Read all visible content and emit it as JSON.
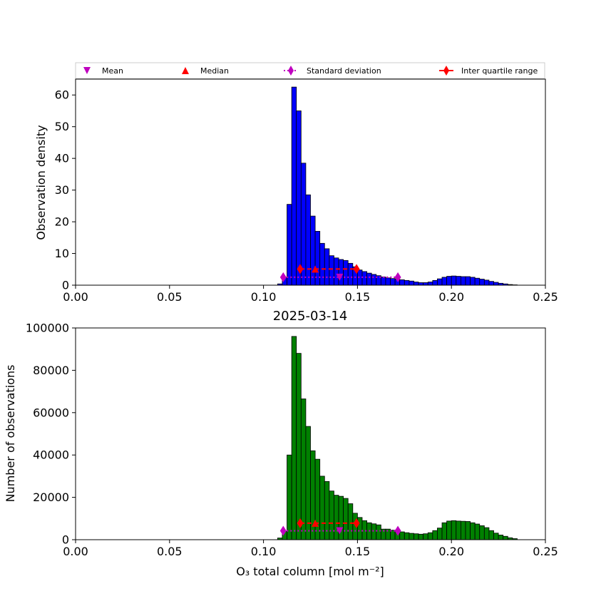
{
  "chart_data": [
    {
      "type": "bar",
      "panel": "density",
      "title": "",
      "xlabel": "",
      "ylabel": "Observation density",
      "xlim": [
        0.0,
        0.25
      ],
      "ylim": [
        0,
        65
      ],
      "x_ticks": [
        "0.00",
        "0.05",
        "0.10",
        "0.15",
        "0.20",
        "0.25"
      ],
      "y_ticks": [
        "0",
        "10",
        "20",
        "30",
        "40",
        "50",
        "60"
      ],
      "y_tick_values": [
        0,
        10,
        20,
        30,
        40,
        50,
        60
      ],
      "bar_color": "#0000ff",
      "bin_width": 0.0025,
      "bin_starts": [
        0.1075,
        0.11,
        0.1125,
        0.115,
        0.1175,
        0.12,
        0.1225,
        0.125,
        0.1275,
        0.13,
        0.1325,
        0.135,
        0.1375,
        0.14,
        0.1425,
        0.145,
        0.1475,
        0.15,
        0.1525,
        0.155,
        0.1575,
        0.16,
        0.1625,
        0.165,
        0.1675,
        0.17,
        0.1725,
        0.175,
        0.1775,
        0.18,
        0.1825,
        0.185,
        0.1875,
        0.19,
        0.1925,
        0.195,
        0.1975,
        0.2,
        0.2025,
        0.205,
        0.2075,
        0.21,
        0.2125,
        0.215,
        0.2175,
        0.22,
        0.2225,
        0.225,
        0.2275,
        0.23,
        0.2325
      ],
      "values": [
        0.4,
        2.5,
        25.5,
        62.5,
        55.0,
        38.5,
        28.5,
        21.8,
        17.0,
        13.2,
        11.5,
        9.3,
        8.6,
        8.1,
        7.8,
        6.9,
        5.8,
        4.8,
        4.3,
        3.8,
        3.4,
        3.0,
        2.6,
        2.3,
        2.1,
        1.9,
        1.7,
        1.5,
        1.3,
        1.0,
        0.8,
        0.8,
        1.0,
        1.5,
        2.0,
        2.5,
        2.8,
        2.9,
        2.8,
        2.7,
        2.7,
        2.5,
        2.2,
        1.9,
        1.6,
        1.2,
        0.9,
        0.6,
        0.4,
        0.2,
        0.1
      ],
      "statistics": {
        "mean": 0.1405,
        "median": 0.1275,
        "standard_deviation_range": [
          0.1105,
          0.1715
        ],
        "inter_quartile_range": [
          0.1195,
          0.1495
        ]
      },
      "marker_levels": {
        "mean": 2.5,
        "median": 5.1,
        "standard_deviation": 2.5,
        "inter_quartile_range": 5.1
      }
    },
    {
      "type": "bar",
      "panel": "counts",
      "title": "2025-03-14",
      "xlabel": "O₃ total column [mol m⁻²]",
      "ylabel": "Number of observations",
      "xlim": [
        0.0,
        0.25
      ],
      "ylim": [
        0,
        100000
      ],
      "x_ticks": [
        "0.00",
        "0.05",
        "0.10",
        "0.15",
        "0.20",
        "0.25"
      ],
      "y_ticks": [
        "0",
        "20000",
        "40000",
        "60000",
        "80000",
        "100000"
      ],
      "y_tick_values": [
        0,
        20000,
        40000,
        60000,
        80000,
        100000
      ],
      "bar_color": "#008000",
      "bin_width": 0.0025,
      "bin_starts": [
        0.1075,
        0.11,
        0.1125,
        0.115,
        0.1175,
        0.12,
        0.1225,
        0.125,
        0.1275,
        0.13,
        0.1325,
        0.135,
        0.1375,
        0.14,
        0.1425,
        0.145,
        0.1475,
        0.15,
        0.1525,
        0.155,
        0.1575,
        0.16,
        0.1625,
        0.165,
        0.1675,
        0.17,
        0.1725,
        0.175,
        0.1775,
        0.18,
        0.1825,
        0.185,
        0.1875,
        0.19,
        0.1925,
        0.195,
        0.1975,
        0.2,
        0.2025,
        0.205,
        0.2075,
        0.21,
        0.2125,
        0.215,
        0.2175,
        0.22,
        0.2225,
        0.225,
        0.2275,
        0.23,
        0.2325
      ],
      "values": [
        800,
        4000,
        40000,
        96000,
        88000,
        66500,
        53500,
        42000,
        38000,
        30000,
        27500,
        23000,
        21000,
        20500,
        19500,
        17000,
        12500,
        10500,
        9000,
        8000,
        7500,
        7000,
        5000,
        5000,
        4500,
        4000,
        3700,
        3300,
        3000,
        2800,
        2600,
        2800,
        3300,
        4300,
        5500,
        8000,
        8800,
        9000,
        8800,
        8700,
        8600,
        8000,
        7400,
        6600,
        5700,
        4300,
        3100,
        2200,
        1600,
        900,
        500
      ],
      "statistics": {
        "mean": 0.1405,
        "median": 0.1275,
        "standard_deviation_range": [
          0.1105,
          0.1715
        ],
        "inter_quartile_range": [
          0.1195,
          0.1495
        ]
      },
      "marker_levels": {
        "mean": 4200,
        "median": 7800,
        "standard_deviation": 4200,
        "inter_quartile_range": 7800
      }
    }
  ],
  "legend": {
    "placement": "above-top-panel",
    "entries": [
      {
        "label": "Mean",
        "marker": "triangle-down",
        "color": "#bf00bf"
      },
      {
        "label": "Median",
        "marker": "triangle-up",
        "color": "#ff0000"
      },
      {
        "label": "Standard deviation",
        "marker": "diamond-dotted-line",
        "color": "#bf00bf"
      },
      {
        "label": "Inter quartile range",
        "marker": "diamond-solid-line",
        "color": "#ff0000"
      }
    ]
  }
}
